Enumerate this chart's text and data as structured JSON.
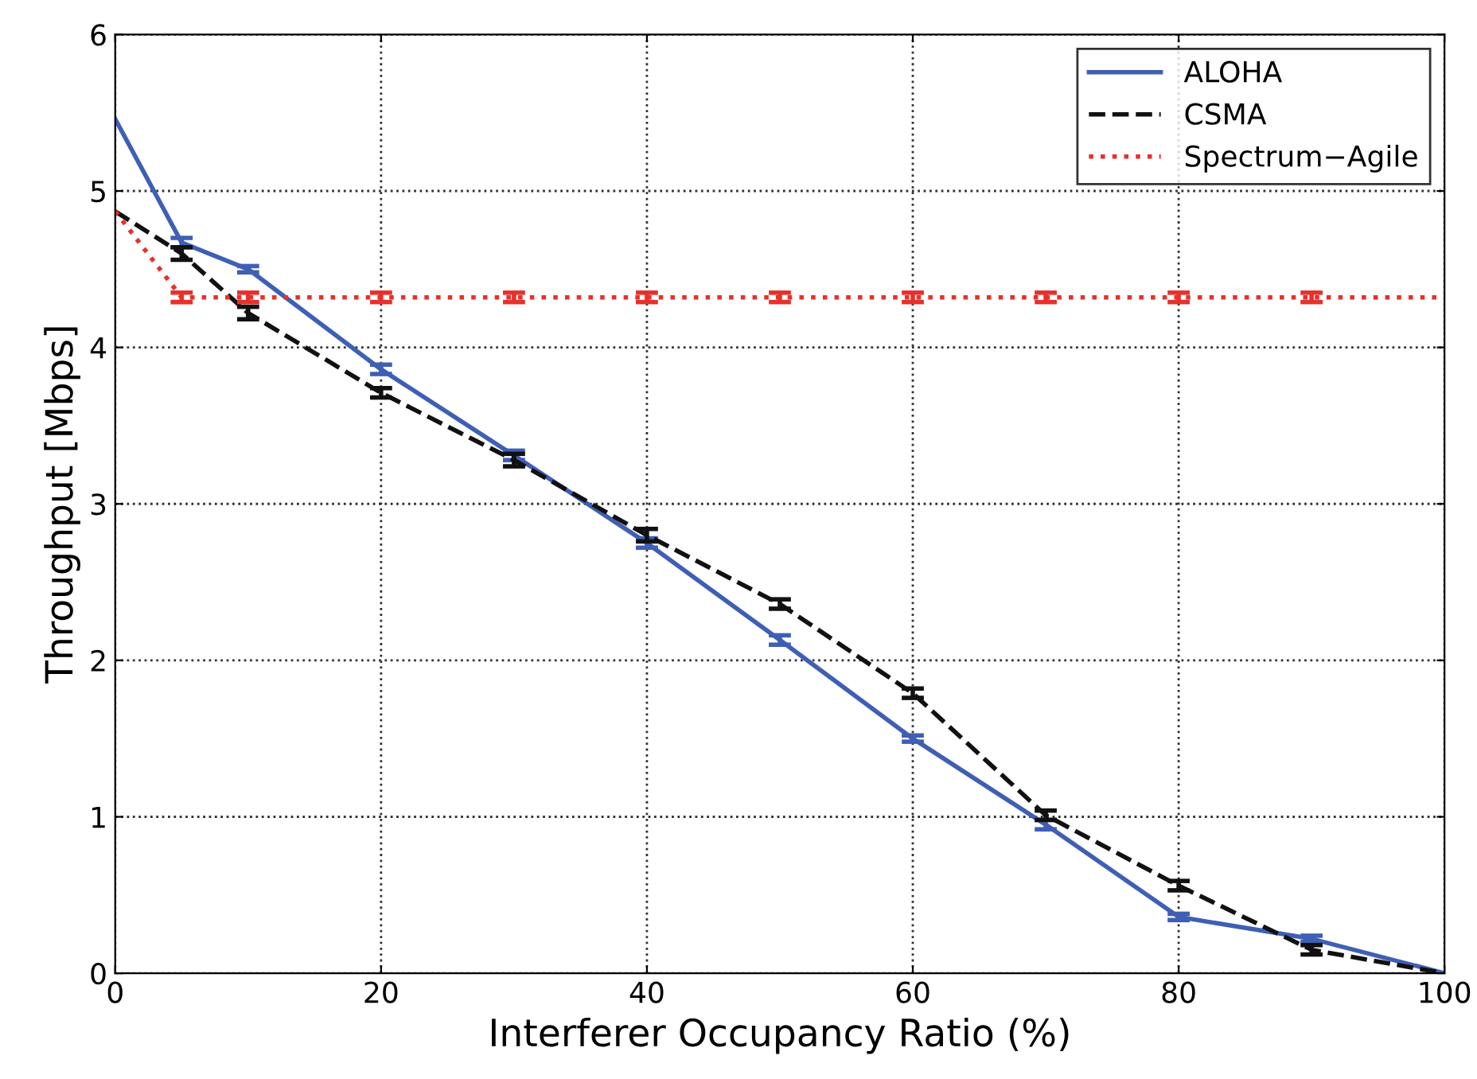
{
  "chart_data": {
    "type": "line",
    "xlabel": "Interferer Occupancy Ratio (%)",
    "ylabel": "Throughput [Mbps]",
    "x": [
      0,
      5,
      10,
      20,
      30,
      40,
      50,
      60,
      70,
      80,
      90,
      100
    ],
    "series": [
      {
        "name": "ALOHA",
        "color": "#3f5fb5",
        "line_style": "solid",
        "values": [
          5.46,
          4.67,
          4.5,
          3.86,
          3.31,
          2.75,
          2.13,
          1.5,
          0.95,
          0.36,
          0.22,
          0
        ],
        "errors": [
          null,
          0.03,
          0.02,
          0.03,
          0.03,
          0.03,
          0.03,
          0.02,
          0.03,
          0.02,
          0.02,
          null
        ]
      },
      {
        "name": "CSMA",
        "color": "#111111",
        "line_style": "dashed",
        "values": [
          4.87,
          4.6,
          4.22,
          3.71,
          3.28,
          2.8,
          2.36,
          1.79,
          1.01,
          0.56,
          0.15,
          0
        ],
        "errors": [
          null,
          0.04,
          0.04,
          0.03,
          0.04,
          0.04,
          0.03,
          0.03,
          0.03,
          0.03,
          0.03,
          null
        ]
      },
      {
        "name": "Spectrum−Agile",
        "color": "#e8302a",
        "line_style": "dotted",
        "values": [
          4.87,
          4.32,
          4.32,
          4.32,
          4.32,
          4.32,
          4.32,
          4.32,
          4.32,
          4.32,
          4.32,
          4.32
        ],
        "errors": [
          null,
          0.03,
          0.03,
          0.03,
          0.03,
          0.03,
          0.03,
          0.03,
          0.03,
          0.03,
          0.03,
          null
        ]
      }
    ],
    "xlim": [
      0,
      100
    ],
    "xticks": [
      0,
      20,
      40,
      60,
      80,
      100
    ],
    "ylim": [
      0,
      6
    ],
    "yticks": [
      0,
      1,
      2,
      3,
      4,
      5,
      6
    ],
    "grid": true,
    "legend": "top right",
    "marker": "none"
  }
}
